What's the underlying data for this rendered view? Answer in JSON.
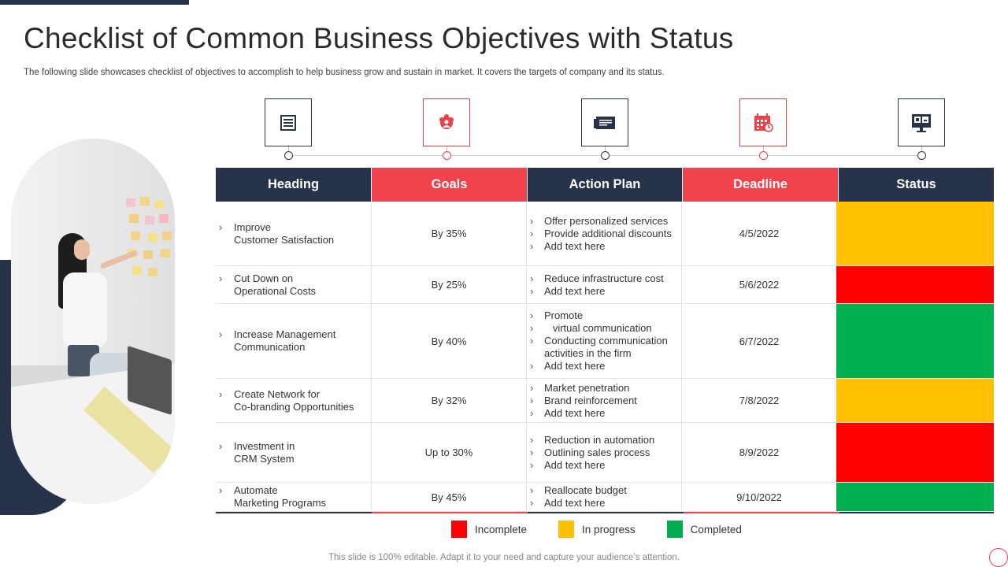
{
  "slide": {
    "title": "Checklist of Common Business Objectives with Status",
    "subtitle": "The following slide showcases checklist of objectives to accomplish to help business grow and sustain in market. It covers the targets of company and its status.",
    "footer": "This slide is 100% editable. Adapt it to your need and capture your audience’s attention."
  },
  "colors": {
    "navy": "#26334a",
    "red_accent": "#f0434e",
    "status_incomplete": "#ff0000",
    "status_in_progress": "#ffc000",
    "status_completed": "#00b050"
  },
  "icons": [
    {
      "name": "document-list-icon",
      "style": "navy"
    },
    {
      "name": "team-users-icon",
      "style": "red"
    },
    {
      "name": "presentation-board-icon",
      "style": "navy"
    },
    {
      "name": "calendar-icon",
      "style": "red"
    },
    {
      "name": "monitor-dashboard-icon",
      "style": "navy"
    }
  ],
  "table": {
    "headers": [
      "Heading",
      "Goals",
      "Action Plan",
      "Deadline",
      "Status"
    ],
    "rows": [
      {
        "heading": "Improve\nCustomer Satisfaction",
        "goal": "By 35%",
        "plan": [
          "Offer personalized services",
          "Provide additional discounts",
          "Add text here"
        ],
        "deadline": "4/5/2022",
        "status": "in_progress"
      },
      {
        "heading": "Cut Down on\nOperational Costs",
        "goal": "By 25%",
        "plan": [
          "Reduce infrastructure cost",
          "Add text here"
        ],
        "deadline": "5/6/2022",
        "status": "incomplete"
      },
      {
        "heading": "Increase Management\nCommunication",
        "goal": "By 40%",
        "plan": [
          "Promote",
          "   virtual communication",
          "Conducting communication activities in the firm",
          "Add text here"
        ],
        "deadline": "6/7/2022",
        "status": "completed"
      },
      {
        "heading": "Create Network for\nCo-branding  Opportunities",
        "goal": "By 32%",
        "plan": [
          "Market penetration",
          "Brand reinforcement",
          "Add text here"
        ],
        "deadline": "7/8/2022",
        "status": "in_progress"
      },
      {
        "heading": "Investment in\nCRM System",
        "goal": "Up to 30%",
        "plan": [
          "Reduction in automation",
          "Outlining sales process",
          "Add text here"
        ],
        "deadline": "8/9/2022",
        "status": "incomplete"
      },
      {
        "heading": "Automate\nMarketing Programs",
        "goal": "By 45%",
        "plan": [
          "Reallocate budget",
          "Add text here"
        ],
        "deadline": "9/10/2022",
        "status": "completed"
      }
    ]
  },
  "legend": [
    {
      "label": "Incomplete",
      "status": "incomplete"
    },
    {
      "label": "In progress",
      "status": "in_progress"
    },
    {
      "label": "Completed",
      "status": "completed"
    }
  ]
}
